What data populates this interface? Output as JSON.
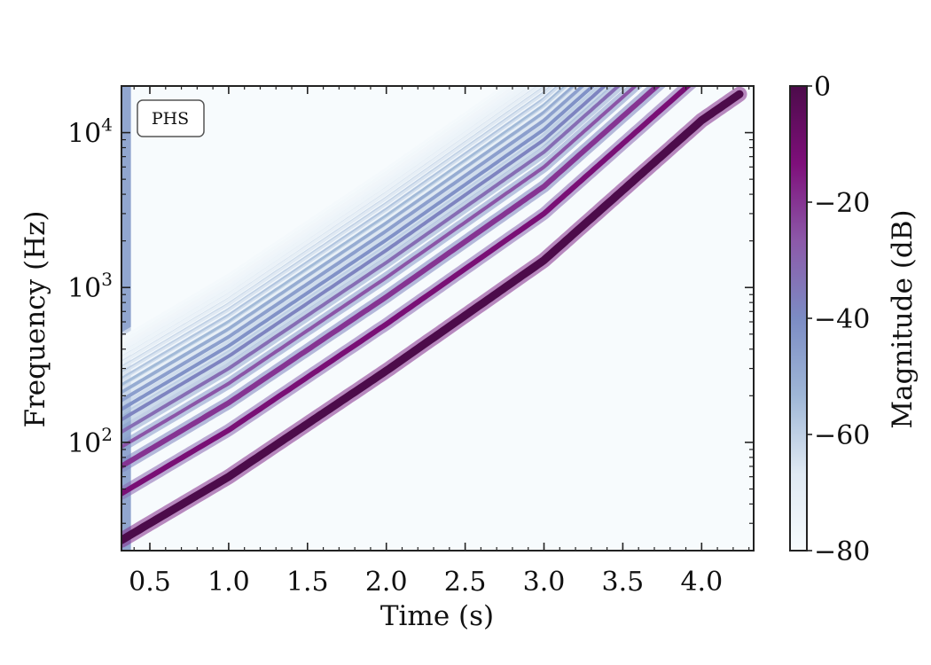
{
  "chart_data": {
    "type": "heatmap",
    "subtype": "spectrogram",
    "annotation": "PHS",
    "xlabel": "Time (s)",
    "ylabel": "Frequency (Hz)",
    "xlim": [
      0.32,
      4.33
    ],
    "ylim": [
      20,
      20000
    ],
    "yscale": "log",
    "xticks": [
      0.5,
      1.0,
      1.5,
      2.0,
      2.5,
      3.0,
      3.5,
      4.0
    ],
    "xtick_labels": [
      "0.5",
      "1.0",
      "1.5",
      "2.0",
      "2.5",
      "3.0",
      "3.5",
      "4.0"
    ],
    "yticks": [
      100,
      1000,
      10000
    ],
    "ytick_labels": [
      {
        "base": "10",
        "exp": "2"
      },
      {
        "base": "10",
        "exp": "3"
      },
      {
        "base": "10",
        "exp": "4"
      }
    ],
    "grid": false,
    "colorbar": {
      "label": "Magnitude (dB)",
      "range": [
        -80,
        0
      ],
      "ticks": [
        0,
        -20,
        -40,
        -60,
        -80
      ],
      "tick_labels": [
        "0",
        "−20",
        "−40",
        "−60",
        "−80"
      ],
      "colormap": [
        "#f7fbfd",
        "#dfe9f3",
        "#9fb7d7",
        "#7c8cc4",
        "#8c59a9",
        "#7e0f7a",
        "#4c0b4a"
      ]
    },
    "sweep": {
      "description": "exponential sine sweep with harmonics",
      "fundamental_points": [
        {
          "time": 0.5,
          "freq_hz": 30
        },
        {
          "time": 1.0,
          "freq_hz": 60
        },
        {
          "time": 2.0,
          "freq_hz": 290
        },
        {
          "time": 3.0,
          "freq_hz": 1500
        },
        {
          "time": 4.0,
          "freq_hz": 12000
        },
        {
          "time": 4.25,
          "freq_hz": 18000
        }
      ],
      "harmonic_orders": [
        1,
        2,
        3,
        4,
        5,
        6,
        7,
        8,
        9,
        10,
        11,
        12,
        13,
        14,
        15,
        16,
        17,
        18,
        19,
        20
      ],
      "harmonic_levels_db": [
        0,
        -12,
        -20,
        -26,
        -32,
        -38,
        -42,
        -46,
        -50,
        -54,
        -57,
        -60,
        -62,
        -64,
        -66,
        -68,
        -70,
        -72,
        -74,
        -76
      ]
    }
  }
}
